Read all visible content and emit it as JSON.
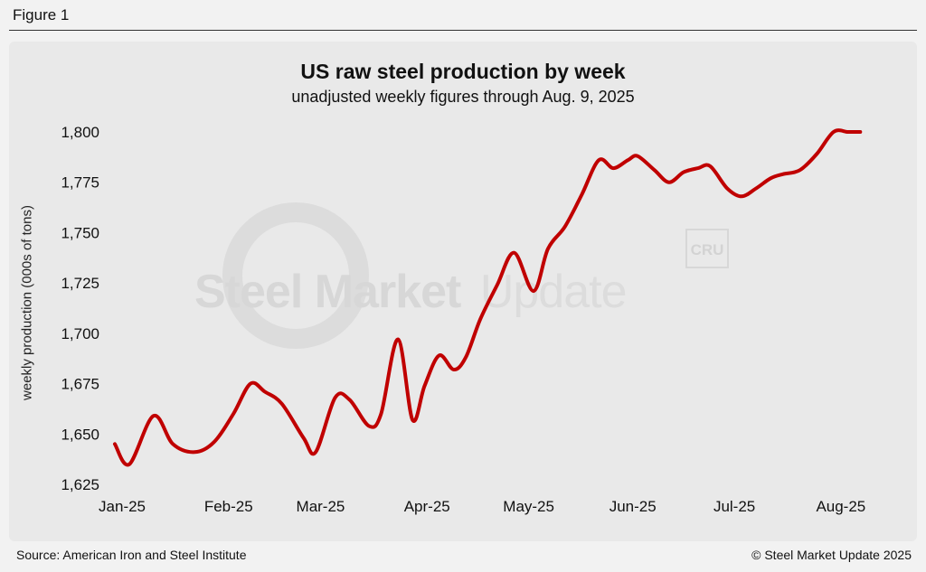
{
  "figure_label": "Figure 1",
  "source": "Source: American Iron and Steel Institute",
  "copyright": "© Steel Market Update 2025",
  "watermark": {
    "brand_bold": "Steel Market",
    "brand_light": "Update",
    "logo": "CRU"
  },
  "colors": {
    "line": "#c00000",
    "panel": "#e9e9e9",
    "background": "#f2f2f2",
    "text": "#111111"
  },
  "chart_data": {
    "type": "line",
    "title": "US raw steel production by week",
    "subtitle": "unadjusted weekly figures through Aug. 9, 2025",
    "ylabel": "weekly production (000s of tons)",
    "xlabel": "",
    "ylim": [
      1625,
      1800
    ],
    "yticks": [
      1625,
      1650,
      1675,
      1700,
      1725,
      1750,
      1775,
      1800
    ],
    "ytick_labels": [
      "1,625",
      "1,650",
      "1,675",
      "1,700",
      "1,725",
      "1,750",
      "1,775",
      "1,800"
    ],
    "xlim": [
      0,
      31.5
    ],
    "xticks": [
      0.3,
      4.7,
      8.5,
      12.9,
      17.1,
      21.4,
      25.6,
      30.0
    ],
    "xtick_labels": [
      "Jan-25",
      "Feb-25",
      "Mar-25",
      "Apr-25",
      "May-25",
      "Jun-25",
      "Jul-25",
      "Aug-25"
    ],
    "grid": false,
    "series": [
      {
        "name": "US raw steel production",
        "x": [
          0,
          0.6,
          1.6,
          2.4,
          3.3,
          4.1,
          4.9,
          5.6,
          6.2,
          6.9,
          7.8,
          8.3,
          9.1,
          9.7,
          10.5,
          11.0,
          11.7,
          12.3,
          12.8,
          13.4,
          14.0,
          14.5,
          15.1,
          15.8,
          16.5,
          17.3,
          17.9,
          18.6,
          19.3,
          20.0,
          20.6,
          21.2,
          21.6,
          22.3,
          22.9,
          23.5,
          24.1,
          24.6,
          25.3,
          25.9,
          26.5,
          27.1,
          27.6,
          28.3,
          29.0,
          29.7,
          30.3,
          30.8
        ],
        "y": [
          1645,
          1635,
          1659,
          1645,
          1641,
          1646,
          1660,
          1675,
          1671,
          1665,
          1648,
          1641,
          1668,
          1667,
          1654,
          1660,
          1697,
          1657,
          1674,
          1689,
          1682,
          1688,
          1707,
          1724,
          1740,
          1721,
          1742,
          1753,
          1769,
          1786,
          1782,
          1786,
          1788,
          1781,
          1775,
          1780,
          1782,
          1783,
          1772,
          1768,
          1772,
          1777,
          1779,
          1781,
          1789,
          1800,
          1800,
          1800
        ]
      }
    ]
  }
}
